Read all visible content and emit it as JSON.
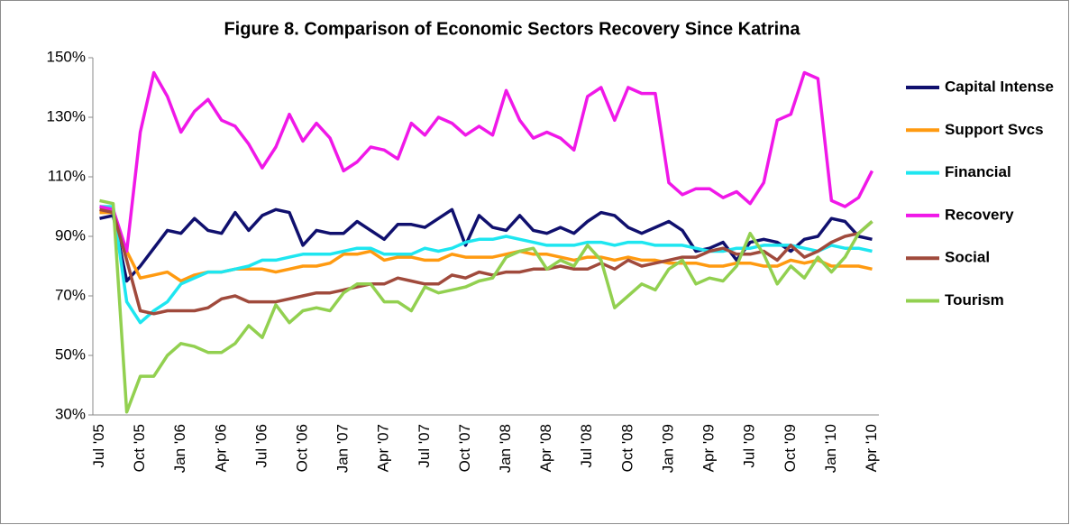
{
  "chart_data": {
    "type": "line",
    "title": "Figure 8. Comparison of Economic Sectors Recovery Since Katrina",
    "categories": [
      "Jul '05",
      null,
      null,
      "Oct '05",
      null,
      null,
      "Jan '06",
      null,
      null,
      "Apr '06",
      null,
      null,
      "Jul '06",
      null,
      null,
      "Oct '06",
      null,
      null,
      "Jan '07",
      null,
      null,
      "Apr '07",
      null,
      null,
      "Jul '07",
      null,
      null,
      "Oct '07",
      null,
      null,
      "Jan '08",
      null,
      null,
      "Apr '08",
      null,
      null,
      "Jul '08",
      null,
      null,
      "Oct '08",
      null,
      null,
      "Jan '09",
      null,
      null,
      "Apr '09",
      null,
      null,
      "Jul '09",
      null,
      null,
      "Oct '09",
      null,
      null,
      "Jan '10",
      null,
      null,
      "Apr '10"
    ],
    "series": [
      {
        "name": "Capital Intense",
        "color": "#10106e",
        "values": [
          96,
          97,
          75,
          80,
          86,
          92,
          91,
          96,
          92,
          91,
          98,
          92,
          97,
          99,
          98,
          87,
          92,
          91,
          91,
          95,
          92,
          89,
          94,
          94,
          93,
          96,
          99,
          87,
          97,
          93,
          92,
          97,
          92,
          91,
          93,
          91,
          95,
          98,
          97,
          93,
          91,
          93,
          95,
          92,
          85,
          86,
          88,
          82,
          88,
          89,
          88,
          85,
          89,
          90,
          96,
          95,
          90,
          89
        ]
      },
      {
        "name": "Support Svcs",
        "color": "#ff9a10",
        "values": [
          98,
          98,
          85,
          76,
          77,
          78,
          75,
          77,
          78,
          78,
          79,
          79,
          79,
          78,
          79,
          80,
          80,
          81,
          84,
          84,
          85,
          82,
          83,
          83,
          82,
          82,
          84,
          83,
          83,
          83,
          84,
          85,
          84,
          84,
          83,
          82,
          83,
          83,
          82,
          83,
          82,
          82,
          81,
          81,
          81,
          80,
          80,
          81,
          81,
          80,
          80,
          82,
          81,
          82,
          80,
          80,
          80,
          79
        ]
      },
      {
        "name": "Financial",
        "color": "#1ee6f0",
        "values": [
          100,
          100,
          68,
          61,
          65,
          68,
          74,
          76,
          78,
          78,
          79,
          80,
          82,
          82,
          83,
          84,
          84,
          84,
          85,
          86,
          86,
          84,
          84,
          84,
          86,
          85,
          86,
          88,
          89,
          89,
          90,
          89,
          88,
          87,
          87,
          87,
          88,
          88,
          87,
          88,
          88,
          87,
          87,
          87,
          86,
          85,
          85,
          86,
          86,
          87,
          87,
          87,
          86,
          85,
          87,
          86,
          86,
          85
        ]
      },
      {
        "name": "Recovery",
        "color": "#f018e8",
        "values": [
          100,
          99,
          85,
          125,
          145,
          137,
          125,
          132,
          136,
          129,
          127,
          121,
          113,
          120,
          131,
          122,
          128,
          123,
          112,
          115,
          120,
          119,
          116,
          128,
          124,
          130,
          128,
          124,
          127,
          124,
          139,
          129,
          123,
          125,
          123,
          119,
          137,
          140,
          129,
          140,
          138,
          138,
          108,
          104,
          106,
          106,
          103,
          105,
          101,
          108,
          129,
          131,
          145,
          143,
          102,
          100,
          103,
          112
        ]
      },
      {
        "name": "Social",
        "color": "#a04a3c",
        "values": [
          99,
          98,
          82,
          65,
          64,
          65,
          65,
          65,
          66,
          69,
          70,
          68,
          68,
          68,
          69,
          70,
          71,
          71,
          72,
          73,
          74,
          74,
          76,
          75,
          74,
          74,
          77,
          76,
          78,
          77,
          78,
          78,
          79,
          79,
          80,
          79,
          79,
          81,
          79,
          82,
          80,
          81,
          82,
          83,
          83,
          85,
          86,
          84,
          84,
          85,
          82,
          87,
          83,
          85,
          88,
          90,
          91,
          95
        ]
      },
      {
        "name": "Tourism",
        "color": "#92d050",
        "values": [
          102,
          101,
          31,
          43,
          43,
          50,
          54,
          53,
          51,
          51,
          54,
          60,
          56,
          67,
          61,
          65,
          66,
          65,
          71,
          74,
          74,
          68,
          68,
          65,
          73,
          71,
          72,
          73,
          75,
          76,
          83,
          85,
          86,
          79,
          82,
          80,
          87,
          82,
          66,
          70,
          74,
          72,
          79,
          82,
          74,
          76,
          75,
          80,
          91,
          84,
          74,
          80,
          76,
          83,
          78,
          83,
          91,
          95
        ]
      }
    ],
    "ylim": [
      30,
      150
    ],
    "yticks": [
      {
        "value": 30,
        "label": "30%"
      },
      {
        "value": 50,
        "label": "50%"
      },
      {
        "value": 70,
        "label": "70%"
      },
      {
        "value": 90,
        "label": "90%"
      },
      {
        "value": 110,
        "label": "110%"
      },
      {
        "value": 130,
        "label": "130%"
      },
      {
        "value": 150,
        "label": "150%"
      }
    ],
    "grid": false,
    "legend": "right"
  }
}
